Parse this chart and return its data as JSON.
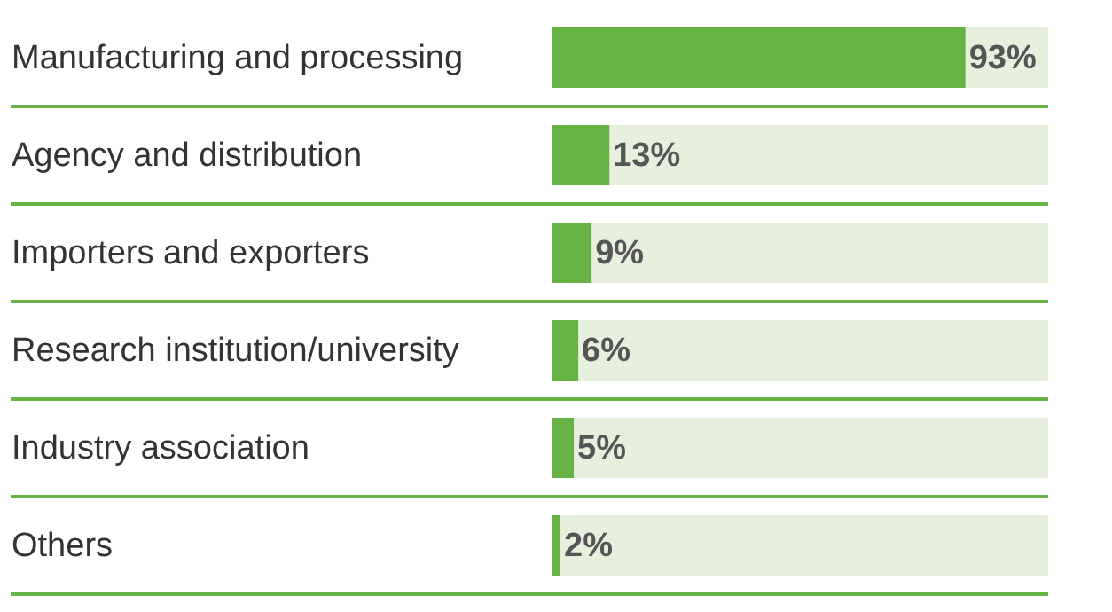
{
  "chart_data": {
    "type": "bar",
    "orientation": "horizontal",
    "categories": [
      "Manufacturing and processing",
      "Agency and distribution",
      "Importers and exporters",
      "Research institution/university",
      "Industry association",
      "Others"
    ],
    "values": [
      93,
      13,
      9,
      6,
      5,
      2
    ],
    "color": "#67b346",
    "value_labels": [
      "93%",
      "13%",
      "9%",
      "6%",
      "5%",
      "2%"
    ]
  }
}
